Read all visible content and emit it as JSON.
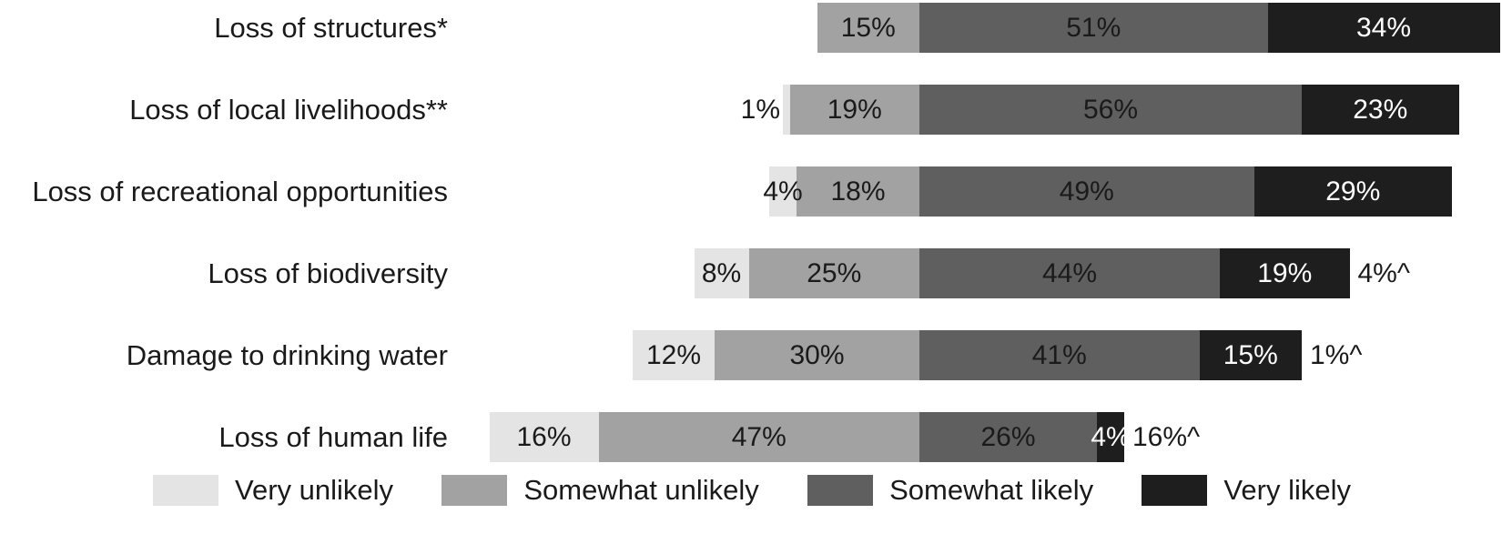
{
  "chart_data": {
    "type": "bar",
    "subtype": "horizontal-diverging-stacked",
    "title": "",
    "xlabel": "",
    "ylabel": "",
    "grid": false,
    "legend_position": "bottom",
    "unit": "%",
    "categories": [
      "Loss of structures*",
      "Loss of local livelihoods**",
      "Loss of recreational opportunities",
      "Loss of biodiversity",
      "Damage to drinking water",
      "Loss of human life"
    ],
    "series": [
      {
        "name": "Very unlikely",
        "color": "#e4e4e4",
        "values": [
          0,
          1,
          4,
          8,
          12,
          16
        ]
      },
      {
        "name": "Somewhat unlikely",
        "color": "#a2a2a2",
        "values": [
          15,
          19,
          18,
          25,
          30,
          47
        ]
      },
      {
        "name": "Somewhat likely",
        "color": "#5f5f5f",
        "values": [
          51,
          56,
          49,
          44,
          41,
          26
        ]
      },
      {
        "name": "Very likely",
        "color": "#1e1e1e",
        "values": [
          34,
          23,
          29,
          19,
          15,
          4
        ]
      }
    ],
    "outside_labels": [
      "",
      "",
      "",
      "4%^",
      "1%^",
      "16%^"
    ],
    "label_format": "{value}%",
    "text_color_dark": "#1a1a1a",
    "text_color_light": "#ffffff",
    "background_color": "#ffffff"
  }
}
